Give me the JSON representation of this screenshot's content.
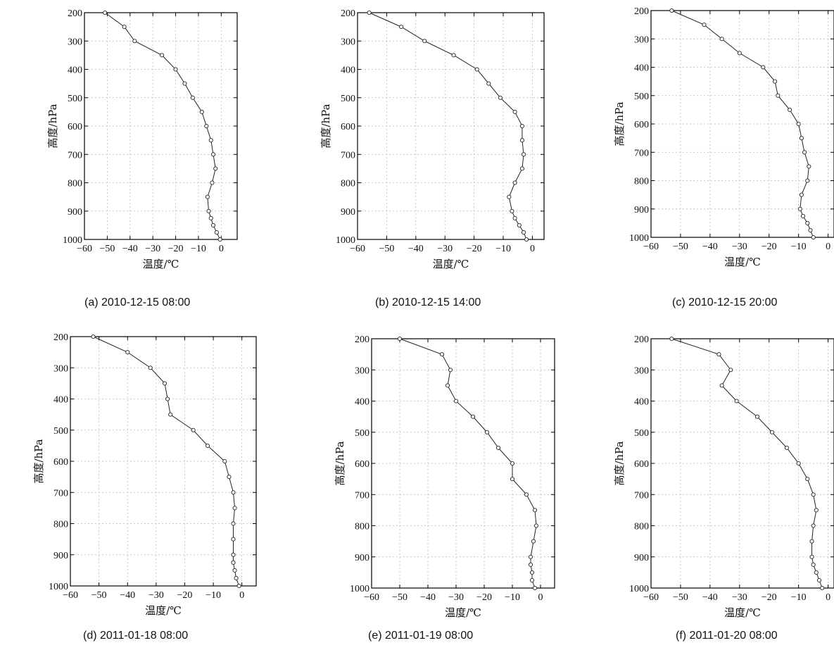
{
  "chart_data": [
    {
      "type": "line",
      "caption": "(a) 2010-12-15 08:00",
      "xlabel": "温度/℃",
      "ylabel": "高度/hPa",
      "xlim": [
        -60,
        7
      ],
      "ylim": [
        1000,
        200
      ],
      "xticks": [
        -60,
        -50,
        -40,
        -30,
        -20,
        -10,
        0
      ],
      "yticks": [
        200,
        300,
        400,
        500,
        600,
        700,
        800,
        900,
        1000
      ],
      "grid": true,
      "series": [
        {
          "temperature": [
            -51,
            -42.5,
            -38,
            -26,
            -20,
            -16,
            -12.5,
            -8.5,
            -6.5,
            -4.5,
            -3.5,
            -2.5,
            -4,
            -6,
            -5.5,
            -4.5,
            -3.5,
            -2,
            -0.5
          ],
          "pressure": [
            200,
            250,
            300,
            350,
            400,
            450,
            500,
            550,
            600,
            650,
            700,
            750,
            800,
            850,
            900,
            925,
            950,
            975,
            1000
          ]
        }
      ]
    },
    {
      "type": "line",
      "caption": "(b) 2010-12-15 14:00",
      "xlabel": "温度/℃",
      "ylabel": "高度/hPa",
      "xlim": [
        -60,
        4
      ],
      "ylim": [
        1000,
        200
      ],
      "xticks": [
        -60,
        -50,
        -40,
        -30,
        -20,
        -10,
        0
      ],
      "yticks": [
        200,
        300,
        400,
        500,
        600,
        700,
        800,
        900,
        1000
      ],
      "grid": true,
      "series": [
        {
          "temperature": [
            -56,
            -45,
            -37,
            -27,
            -19,
            -15,
            -11,
            -6,
            -3.5,
            -3.5,
            -3,
            -3.5,
            -6,
            -8,
            -7,
            -6,
            -4.5,
            -3,
            -2
          ],
          "pressure": [
            200,
            250,
            300,
            350,
            400,
            450,
            500,
            550,
            600,
            650,
            700,
            750,
            800,
            850,
            900,
            925,
            950,
            975,
            1000
          ]
        }
      ]
    },
    {
      "type": "line",
      "caption": "(c) 2010-12-15 20:00",
      "xlabel": "温度/℃",
      "ylabel": "高度/hPa",
      "xlim": [
        -60,
        2
      ],
      "ylim": [
        1000,
        200
      ],
      "xticks": [
        -60,
        -50,
        -40,
        -30,
        -20,
        -10,
        0
      ],
      "yticks": [
        200,
        300,
        400,
        500,
        600,
        700,
        800,
        900,
        1000
      ],
      "grid": true,
      "series": [
        {
          "temperature": [
            -53,
            -42,
            -36,
            -30,
            -22,
            -18,
            -17,
            -13,
            -10,
            -9,
            -8,
            -6.5,
            -7,
            -9,
            -9.5,
            -8.5,
            -7,
            -6,
            -5
          ],
          "pressure": [
            200,
            250,
            300,
            350,
            400,
            450,
            500,
            550,
            600,
            650,
            700,
            750,
            800,
            850,
            900,
            925,
            950,
            975,
            1000
          ]
        }
      ]
    },
    {
      "type": "line",
      "caption": "(d) 2011-01-18 08:00",
      "xlabel": "温度/℃",
      "ylabel": "高度/hPa",
      "xlim": [
        -60,
        5
      ],
      "ylim": [
        1000,
        200
      ],
      "xticks": [
        -60,
        -50,
        -40,
        -30,
        -20,
        -10,
        0
      ],
      "yticks": [
        200,
        300,
        400,
        500,
        600,
        700,
        800,
        900,
        1000
      ],
      "grid": true,
      "series": [
        {
          "temperature": [
            -52,
            -40,
            -32,
            -27,
            -26,
            -25,
            -17,
            -12,
            -6,
            -4.5,
            -3,
            -2.5,
            -3,
            -3,
            -3,
            -3,
            -2.5,
            -2,
            -1
          ],
          "pressure": [
            200,
            250,
            300,
            350,
            400,
            450,
            500,
            550,
            600,
            650,
            700,
            750,
            800,
            850,
            900,
            925,
            950,
            975,
            1000
          ]
        }
      ]
    },
    {
      "type": "line",
      "caption": "(e) 2011-01-19 08:00",
      "xlabel": "温度/℃",
      "ylabel": "高度/hPa",
      "xlim": [
        -60,
        5
      ],
      "ylim": [
        1000,
        200
      ],
      "xticks": [
        -60,
        -50,
        -40,
        -30,
        -20,
        -10,
        0
      ],
      "yticks": [
        200,
        300,
        400,
        500,
        600,
        700,
        800,
        900,
        1000
      ],
      "grid": true,
      "series": [
        {
          "temperature": [
            -50,
            -35,
            -32,
            -33,
            -30,
            -24,
            -19,
            -15,
            -10,
            -10,
            -5,
            -2,
            -1.5,
            -2.5,
            -3.5,
            -3.5,
            -3,
            -3,
            -2
          ],
          "pressure": [
            200,
            250,
            300,
            350,
            400,
            450,
            500,
            550,
            600,
            650,
            700,
            750,
            800,
            850,
            900,
            925,
            950,
            975,
            1000
          ]
        }
      ]
    },
    {
      "type": "line",
      "caption": "(f) 2011-01-20 08:00",
      "xlabel": "温度/℃",
      "ylabel": "高度/hPa",
      "xlim": [
        -60,
        2
      ],
      "ylim": [
        1000,
        200
      ],
      "xticks": [
        -60,
        -50,
        -40,
        -30,
        -20,
        -10,
        0
      ],
      "yticks": [
        200,
        300,
        400,
        500,
        600,
        700,
        800,
        900,
        1000
      ],
      "grid": true,
      "series": [
        {
          "temperature": [
            -53,
            -37,
            -33,
            -36,
            -31,
            -24,
            -19,
            -14,
            -10,
            -7,
            -5,
            -4,
            -5,
            -5.5,
            -5.5,
            -5,
            -4,
            -3,
            -2
          ],
          "pressure": [
            200,
            250,
            300,
            350,
            400,
            450,
            500,
            550,
            600,
            650,
            700,
            750,
            800,
            850,
            900,
            925,
            950,
            975,
            1000
          ]
        }
      ]
    }
  ]
}
